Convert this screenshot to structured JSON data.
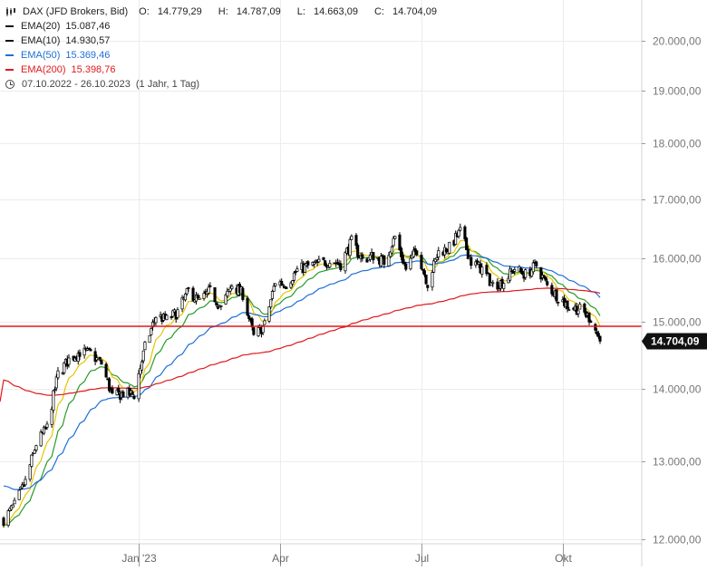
{
  "header": {
    "title": "DAX (JFD Brokers, Bid)",
    "open_label": "O:",
    "open": "14.779,29",
    "high_label": "H:",
    "high": "14.787,09",
    "low_label": "L:",
    "low": "14.663,09",
    "close_label": "C:",
    "close": "14.704,09",
    "chart_icon": "candlestick-icon"
  },
  "legend": [
    {
      "label": "EMA(20)",
      "value": "15.087,46",
      "color": "#111111"
    },
    {
      "label": "EMA(10)",
      "value": "14.930,57",
      "color": "#111111"
    },
    {
      "label": "EMA(50)",
      "value": "15.369,46",
      "color": "#1f6fd6"
    },
    {
      "label": "EMA(200)",
      "value": "15.398,76",
      "color": "#e0181b"
    }
  ],
  "date_range": {
    "text": "07.10.2022 - 26.10.2023",
    "period": "(1 Jahr, 1 Tag)",
    "icon": "clock-icon"
  },
  "price_label": "14.704,09",
  "chart_data": {
    "type": "candlestick",
    "x_axis": {
      "ticks": [
        "Jan '23",
        "Apr",
        "Jul",
        "Okt"
      ],
      "tick_dates": [
        "2023-01-02",
        "2023-04-03",
        "2023-07-03",
        "2023-10-02"
      ],
      "range": [
        "2022-10-07",
        "2023-10-26"
      ]
    },
    "y_axis": {
      "scale": "log",
      "ticks": [
        12000,
        13000,
        14000,
        15000,
        16000,
        17000,
        18000,
        19000,
        20000
      ],
      "tick_labels": [
        "12.000,00",
        "13.000,00",
        "14.000,00",
        "15.000,00",
        "16.000,00",
        "17.000,00",
        "18.000,00",
        "19.000,00",
        "20.000,00"
      ],
      "range": [
        11950,
        20850
      ],
      "position": "right"
    },
    "grid": true,
    "horizontal_line": {
      "value": 14930,
      "color": "#e0181b"
    },
    "close_series": [
      [
        "2022-10-07",
        12250
      ],
      [
        "2022-10-14",
        12430
      ],
      [
        "2022-10-21",
        12730
      ],
      [
        "2022-10-28",
        13240
      ],
      [
        "2022-11-04",
        13460
      ],
      [
        "2022-11-11",
        14220
      ],
      [
        "2022-11-18",
        14430
      ],
      [
        "2022-11-25",
        14540
      ],
      [
        "2022-12-02",
        14520
      ],
      [
        "2022-12-09",
        14370
      ],
      [
        "2022-12-16",
        13890
      ],
      [
        "2022-12-23",
        13940
      ],
      [
        "2022-12-30",
        13920
      ],
      [
        "2023-01-06",
        14610
      ],
      [
        "2023-01-13",
        15090
      ],
      [
        "2023-01-20",
        15030
      ],
      [
        "2023-01-27",
        15150
      ],
      [
        "2023-02-03",
        15480
      ],
      [
        "2023-02-10",
        15310
      ],
      [
        "2023-02-17",
        15480
      ],
      [
        "2023-02-24",
        15210
      ],
      [
        "2023-03-03",
        15580
      ],
      [
        "2023-03-10",
        15430
      ],
      [
        "2023-03-17",
        14770
      ],
      [
        "2023-03-24",
        14950
      ],
      [
        "2023-03-31",
        15630
      ],
      [
        "2023-04-07",
        15590
      ],
      [
        "2023-04-14",
        15810
      ],
      [
        "2023-04-21",
        15880
      ],
      [
        "2023-04-28",
        15920
      ],
      [
        "2023-05-05",
        15960
      ],
      [
        "2023-05-12",
        15910
      ],
      [
        "2023-05-19",
        16280
      ],
      [
        "2023-05-26",
        15980
      ],
      [
        "2023-06-02",
        16050
      ],
      [
        "2023-06-09",
        15950
      ],
      [
        "2023-06-16",
        16360
      ],
      [
        "2023-06-23",
        15830
      ],
      [
        "2023-06-30",
        16150
      ],
      [
        "2023-07-07",
        15600
      ],
      [
        "2023-07-14",
        16110
      ],
      [
        "2023-07-21",
        16180
      ],
      [
        "2023-07-28",
        16450
      ],
      [
        "2023-08-04",
        15950
      ],
      [
        "2023-08-11",
        15830
      ],
      [
        "2023-08-18",
        15570
      ],
      [
        "2023-08-25",
        15630
      ],
      [
        "2023-09-01",
        15840
      ],
      [
        "2023-09-08",
        15740
      ],
      [
        "2023-09-15",
        15890
      ],
      [
        "2023-09-22",
        15560
      ],
      [
        "2023-09-29",
        15390
      ],
      [
        "2023-10-06",
        15230
      ],
      [
        "2023-10-13",
        15190
      ],
      [
        "2023-10-20",
        15050
      ],
      [
        "2023-10-26",
        14704
      ]
    ],
    "series": [
      {
        "name": "EMA(20)",
        "color": "#2a9a2a"
      },
      {
        "name": "EMA(10)",
        "color": "#e6c400"
      },
      {
        "name": "EMA(50)",
        "color": "#1f6fd6"
      },
      {
        "name": "EMA(200)",
        "color": "#e0181b"
      }
    ]
  }
}
